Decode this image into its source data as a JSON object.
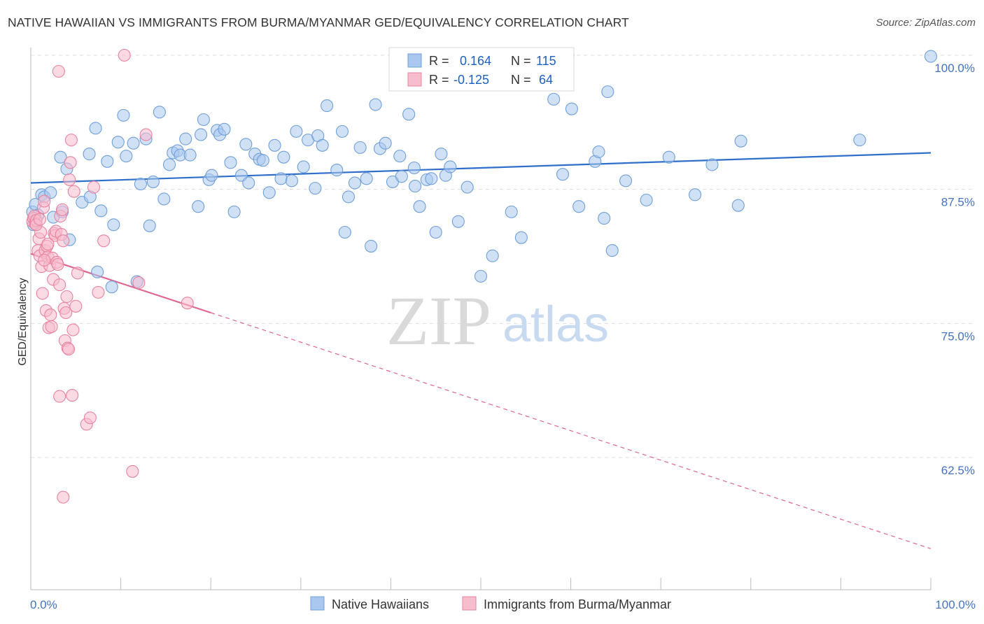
{
  "title": "NATIVE HAWAIIAN VS IMMIGRANTS FROM BURMA/MYANMAR GED/EQUIVALENCY CORRELATION CHART",
  "source": "Source: ZipAtlas.com",
  "watermark": {
    "zip": "ZIP",
    "atlas": "atlas"
  },
  "colors": {
    "blue_fill": "#aac8ef",
    "blue_stroke": "#6f9fd8",
    "blue_line": "#2f6fcc",
    "pink_fill": "#f7bccd",
    "pink_stroke": "#e8839f",
    "pink_line": "#e06690",
    "tick_color": "#4472c4",
    "grid": "#dddddd"
  },
  "legend": {
    "row1": {
      "r_label": "R =",
      "r_value": "0.164",
      "n_label": "N =",
      "n_value": "115"
    },
    "row2": {
      "r_label": "R =",
      "r_value": "-0.125",
      "n_label": "N =",
      "n_value": "64"
    }
  },
  "chart_data": {
    "type": "scatter",
    "title": "NATIVE HAWAIIAN VS IMMIGRANTS FROM BURMA/MYANMAR GED/EQUIVALENCY CORRELATION CHART",
    "xlabel": "",
    "ylabel": "GED/Equivalency",
    "xlim": [
      0,
      100
    ],
    "ylim": [
      50.5,
      101.5
    ],
    "x_tick_labels": [
      "0.0%",
      "100.0%"
    ],
    "y_ticks": [
      62.5,
      75.0,
      87.5,
      100.0
    ],
    "y_tick_labels": [
      "62.5%",
      "75.0%",
      "87.5%",
      "100.0%"
    ],
    "grid": true,
    "legend_position": "top-center",
    "series": [
      {
        "name": "Native Hawaiians",
        "color": "#aac8ef",
        "trend": {
          "x": [
            0,
            100
          ],
          "y": [
            88.1,
            90.9
          ],
          "dashed_to": null
        },
        "points": [
          [
            0.2,
            85.4
          ],
          [
            0.3,
            84.2
          ],
          [
            0.5,
            86.1
          ],
          [
            0.8,
            85.1
          ],
          [
            1.2,
            87.0
          ],
          [
            1.5,
            86.8
          ],
          [
            2.2,
            87.2
          ],
          [
            2.5,
            84.9
          ],
          [
            3.3,
            90.5
          ],
          [
            3.5,
            85.4
          ],
          [
            4.0,
            89.4
          ],
          [
            4.3,
            82.8
          ],
          [
            5.7,
            86.3
          ],
          [
            6.5,
            90.8
          ],
          [
            6.6,
            86.8
          ],
          [
            7.2,
            93.2
          ],
          [
            7.4,
            79.8
          ],
          [
            7.8,
            85.5
          ],
          [
            8.5,
            90.1
          ],
          [
            9.0,
            78.4
          ],
          [
            9.2,
            84.2
          ],
          [
            9.7,
            91.9
          ],
          [
            10.3,
            94.4
          ],
          [
            10.6,
            90.6
          ],
          [
            11.4,
            91.8
          ],
          [
            11.8,
            78.9
          ],
          [
            12.2,
            88.0
          ],
          [
            12.8,
            92.2
          ],
          [
            13.2,
            84.1
          ],
          [
            13.6,
            88.2
          ],
          [
            14.3,
            94.7
          ],
          [
            14.8,
            86.6
          ],
          [
            15.4,
            89.8
          ],
          [
            15.8,
            90.9
          ],
          [
            16.3,
            91.1
          ],
          [
            16.6,
            90.7
          ],
          [
            17.2,
            92.2
          ],
          [
            17.7,
            90.7
          ],
          [
            18.6,
            85.9
          ],
          [
            18.9,
            92.6
          ],
          [
            19.2,
            94.0
          ],
          [
            19.8,
            88.4
          ],
          [
            20.1,
            88.8
          ],
          [
            20.7,
            93.0
          ],
          [
            21.0,
            92.6
          ],
          [
            21.5,
            93.1
          ],
          [
            22.2,
            90.0
          ],
          [
            22.6,
            85.4
          ],
          [
            23.4,
            88.8
          ],
          [
            23.9,
            91.7
          ],
          [
            24.2,
            88.1
          ],
          [
            24.9,
            90.8
          ],
          [
            25.4,
            90.3
          ],
          [
            25.8,
            90.2
          ],
          [
            26.5,
            87.2
          ],
          [
            27.1,
            91.6
          ],
          [
            27.8,
            88.5
          ],
          [
            28.1,
            90.5
          ],
          [
            29.0,
            88.3
          ],
          [
            29.5,
            92.9
          ],
          [
            30.3,
            89.6
          ],
          [
            30.8,
            92.1
          ],
          [
            31.6,
            87.6
          ],
          [
            31.9,
            92.5
          ],
          [
            32.4,
            91.6
          ],
          [
            32.9,
            95.3
          ],
          [
            34.0,
            89.3
          ],
          [
            34.6,
            92.9
          ],
          [
            34.9,
            83.5
          ],
          [
            35.3,
            86.8
          ],
          [
            36.0,
            88.1
          ],
          [
            36.6,
            91.4
          ],
          [
            37.3,
            88.5
          ],
          [
            37.8,
            82.2
          ],
          [
            38.3,
            95.4
          ],
          [
            38.8,
            91.3
          ],
          [
            39.4,
            91.8
          ],
          [
            40.2,
            88.2
          ],
          [
            41.0,
            90.6
          ],
          [
            41.2,
            88.7
          ],
          [
            42.0,
            94.5
          ],
          [
            42.6,
            89.5
          ],
          [
            42.7,
            87.8
          ],
          [
            43.2,
            85.9
          ],
          [
            44.0,
            88.4
          ],
          [
            44.5,
            88.5
          ],
          [
            45.0,
            83.5
          ],
          [
            45.6,
            90.8
          ],
          [
            46.1,
            88.8
          ],
          [
            46.6,
            89.6
          ],
          [
            47.5,
            84.5
          ],
          [
            48.5,
            87.7
          ],
          [
            50.0,
            79.4
          ],
          [
            51.3,
            81.3
          ],
          [
            53.4,
            85.4
          ],
          [
            54.5,
            83.0
          ],
          [
            58.1,
            95.9
          ],
          [
            59.1,
            88.9
          ],
          [
            60.1,
            95.0
          ],
          [
            60.9,
            85.9
          ],
          [
            62.7,
            90.1
          ],
          [
            63.1,
            91.0
          ],
          [
            63.7,
            84.8
          ],
          [
            64.1,
            96.6
          ],
          [
            64.6,
            81.8
          ],
          [
            66.1,
            88.3
          ],
          [
            68.4,
            86.5
          ],
          [
            70.9,
            90.5
          ],
          [
            73.8,
            87.0
          ],
          [
            75.7,
            89.8
          ],
          [
            78.6,
            86.0
          ],
          [
            78.9,
            92.0
          ],
          [
            92.1,
            92.1
          ],
          [
            100.0,
            99.9
          ],
          [
            59.7,
            100.0
          ]
        ]
      },
      {
        "name": "Immigrants from Burma/Myanmar",
        "color": "#f7bccd",
        "trend": {
          "x": [
            0,
            20
          ],
          "y": [
            81.5,
            76.0
          ],
          "dashed_to": [
            100,
            54.0
          ]
        },
        "points": [
          [
            0.2,
            84.5
          ],
          [
            0.3,
            84.8
          ],
          [
            0.4,
            85.0
          ],
          [
            0.5,
            84.3
          ],
          [
            0.6,
            84.6
          ],
          [
            0.8,
            81.8
          ],
          [
            0.9,
            82.9
          ],
          [
            1.0,
            81.3
          ],
          [
            1.1,
            83.5
          ],
          [
            1.2,
            80.3
          ],
          [
            1.3,
            77.8
          ],
          [
            1.4,
            85.8
          ],
          [
            1.5,
            86.4
          ],
          [
            1.6,
            81.8
          ],
          [
            1.7,
            76.2
          ],
          [
            1.8,
            82.2
          ],
          [
            1.9,
            81.2
          ],
          [
            2.0,
            74.6
          ],
          [
            2.1,
            80.4
          ],
          [
            2.2,
            75.8
          ],
          [
            2.3,
            74.7
          ],
          [
            2.4,
            81.1
          ],
          [
            2.5,
            79.1
          ],
          [
            2.6,
            83.4
          ],
          [
            2.7,
            83.2
          ],
          [
            2.8,
            83.6
          ],
          [
            2.9,
            80.7
          ],
          [
            3.0,
            80.5
          ],
          [
            3.1,
            98.5
          ],
          [
            3.2,
            78.6
          ],
          [
            3.3,
            85.0
          ],
          [
            3.4,
            83.3
          ],
          [
            3.5,
            85.6
          ],
          [
            3.6,
            82.7
          ],
          [
            3.7,
            76.4
          ],
          [
            3.8,
            73.4
          ],
          [
            3.9,
            76.0
          ],
          [
            4.0,
            77.5
          ],
          [
            4.1,
            72.7
          ],
          [
            4.2,
            72.6
          ],
          [
            4.3,
            88.4
          ],
          [
            4.4,
            90.0
          ],
          [
            4.5,
            92.1
          ],
          [
            4.6,
            68.3
          ],
          [
            4.7,
            74.4
          ],
          [
            4.8,
            87.3
          ],
          [
            5.0,
            76.6
          ],
          [
            5.2,
            79.7
          ],
          [
            6.2,
            65.6
          ],
          [
            6.6,
            66.2
          ],
          [
            7.0,
            87.7
          ],
          [
            7.5,
            77.9
          ],
          [
            8.1,
            82.7
          ],
          [
            10.4,
            100.0
          ],
          [
            11.3,
            61.2
          ],
          [
            12.0,
            78.8
          ],
          [
            12.8,
            92.6
          ],
          [
            17.4,
            76.9
          ],
          [
            3.6,
            58.8
          ],
          [
            3.2,
            68.2
          ],
          [
            0.6,
            84.2
          ],
          [
            1.0,
            84.7
          ],
          [
            1.5,
            80.9
          ],
          [
            1.9,
            82.4
          ]
        ]
      }
    ]
  },
  "bottom_legend": {
    "item1": "Native Hawaiians",
    "item2": "Immigrants from Burma/Myanmar"
  }
}
